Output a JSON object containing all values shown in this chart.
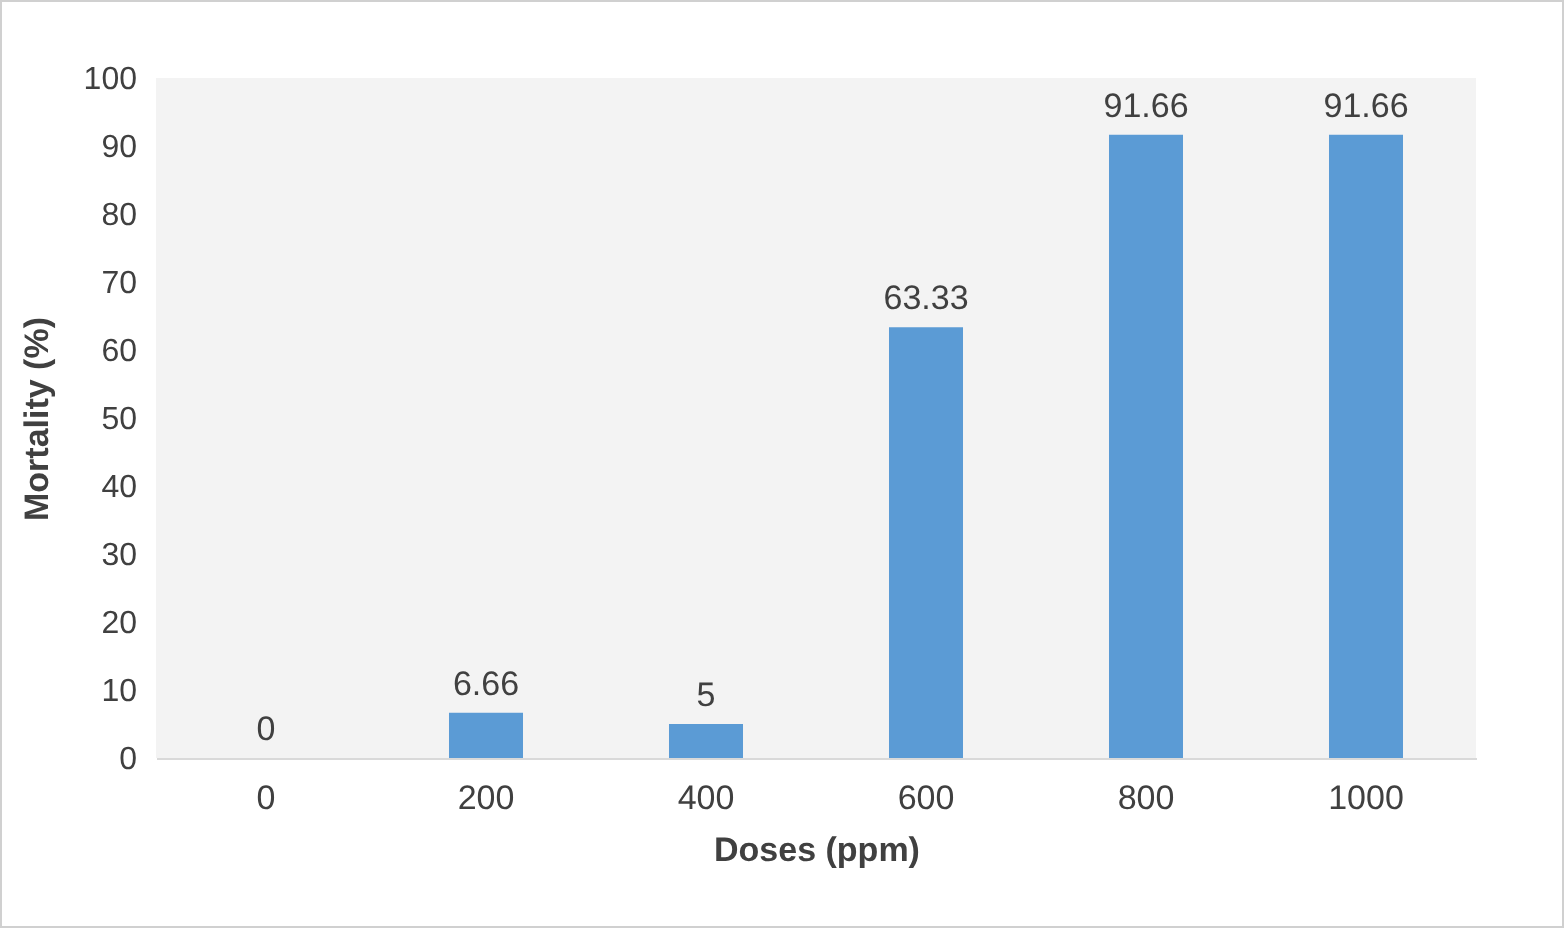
{
  "chart_data": {
    "type": "bar",
    "xlabel": "Doses (ppm)",
    "ylabel": "Mortality (%)",
    "categories": [
      "0",
      "200",
      "400",
      "600",
      "800",
      "1000"
    ],
    "values": [
      0,
      6.66,
      5,
      63.33,
      91.66,
      91.66
    ],
    "color": "#5b9bd5",
    "ylim": [
      0,
      100
    ],
    "yticks": [
      0,
      10,
      20,
      30,
      40,
      50,
      60,
      70,
      80,
      90,
      100
    ],
    "grid": false,
    "data_labels": true
  }
}
